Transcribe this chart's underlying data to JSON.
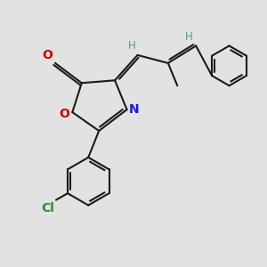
{
  "background_color": "#e2e2e2",
  "bond_color": "#1a1a1a",
  "atom_colors": {
    "O": "#cc0000",
    "N": "#1a1acc",
    "Cl": "#2d8c2d",
    "H": "#4a9999",
    "C": "#1a1a1a"
  },
  "font_size": 9.5,
  "lw": 1.5,
  "xlim": [
    0,
    10
  ],
  "ylim": [
    0,
    10
  ]
}
